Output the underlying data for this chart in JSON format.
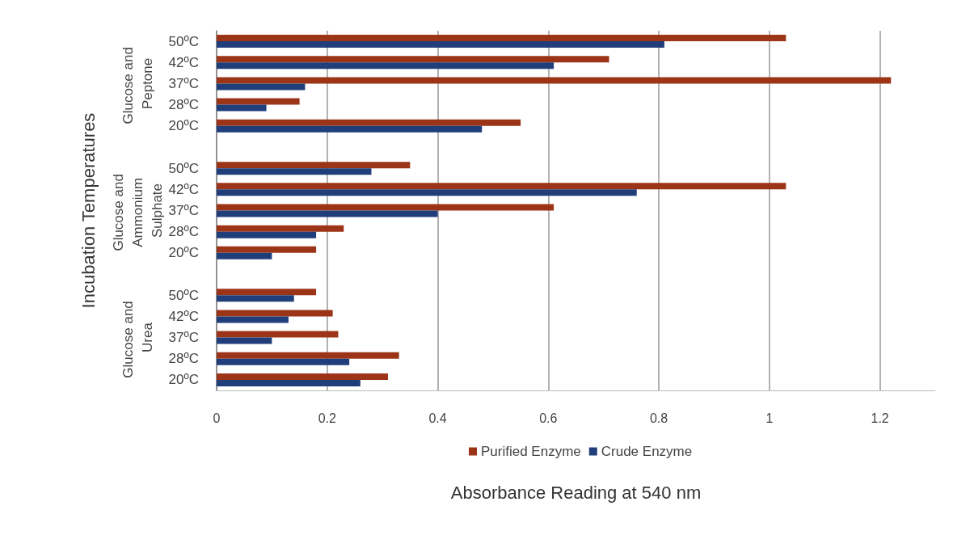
{
  "chart_data": {
    "type": "bar",
    "orientation": "horizontal",
    "xlabel": "Absorbance Reading at 540 nm",
    "ylabel": "Incubation Temperatures",
    "categories": [
      "50ºC",
      "42ºC",
      "37ºC",
      "28ºC",
      "20ºC",
      null,
      "50ºC",
      "42ºC",
      "37ºC",
      "28ºC",
      "20ºC",
      null,
      "50ºC",
      "42ºC",
      "37ºC",
      "28ºC",
      "20ºC"
    ],
    "series": [
      {
        "name": "Purified Enzyme",
        "color": "#9c3418",
        "values": [
          1.03,
          0.71,
          1.22,
          0.15,
          0.55,
          null,
          0.35,
          1.03,
          0.61,
          0.23,
          0.18,
          null,
          0.18,
          0.21,
          0.22,
          0.33,
          0.31
        ]
      },
      {
        "name": "Crude Enzyme",
        "color": "#203f7a",
        "values": [
          0.81,
          0.61,
          0.16,
          0.09,
          0.48,
          null,
          0.28,
          0.76,
          0.4,
          0.18,
          0.1,
          null,
          0.14,
          0.13,
          0.1,
          0.24,
          0.26
        ]
      }
    ],
    "annotations": [
      "Glucose and Peptone",
      "Glucose and Ammonium Sulphate",
      "Glucose and Urea"
    ],
    "xlim": [
      0,
      1.3
    ],
    "xticks": [
      0,
      0.2,
      0.4,
      0.6,
      0.8,
      1,
      1.2
    ],
    "grid": "x",
    "legend": "bottom"
  }
}
